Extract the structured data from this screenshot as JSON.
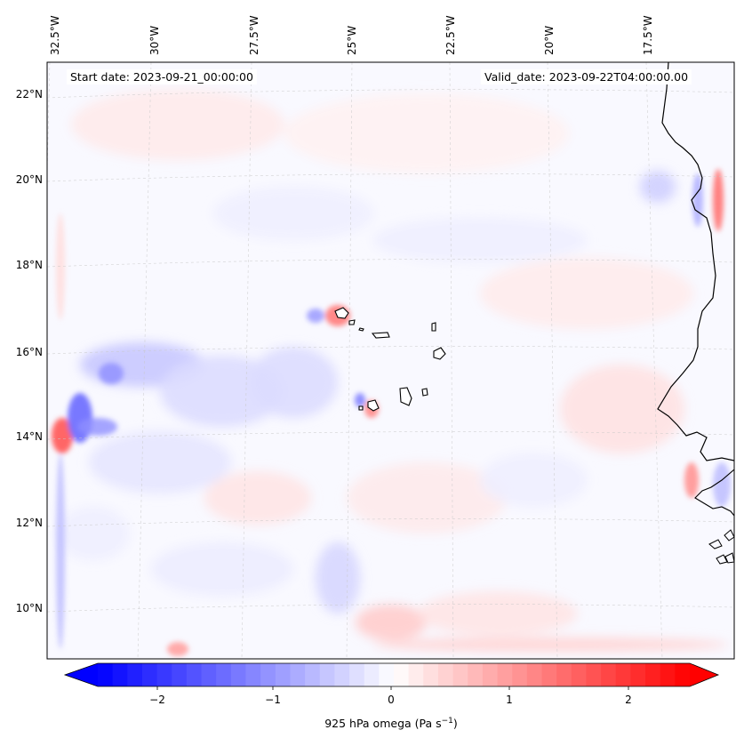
{
  "map": {
    "start_date": "Start date: 2023-09-21_00:00:00",
    "valid_date": "Valid_date: 2023-09-22T04:00:00.00",
    "lon_labels": [
      "32.5°W",
      "30°W",
      "27.5°W",
      "25°W",
      "22.5°W",
      "20°W",
      "17.5°W"
    ],
    "lat_labels": [
      "22°N",
      "20°N",
      "18°N",
      "16°N",
      "14°N",
      "12°N",
      "10°N"
    ],
    "colormap": "bwr",
    "colorbar": {
      "ticks": [
        "−2",
        "−1",
        "0",
        "1",
        "2"
      ],
      "label_main": "925 hPa omega (Pa s",
      "label_sup": "−1",
      "label_end": ")",
      "range": [
        -2.7,
        2.7
      ],
      "colors": {
        "low": "#0000ff",
        "mid": "#ffffff",
        "high": "#ff0000"
      }
    }
  }
}
